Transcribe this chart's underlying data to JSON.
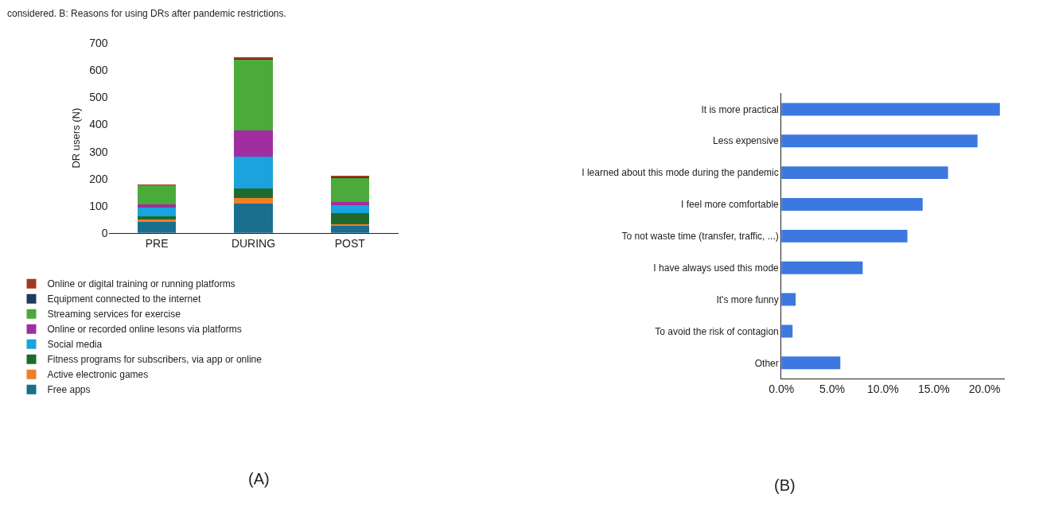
{
  "chart_data": [
    {
      "type": "bar",
      "stacked": true,
      "ylabel": "DR users (N)",
      "categories": [
        "PRE",
        "DURING",
        "POST"
      ],
      "ylim": [
        0,
        700
      ],
      "yticks": [
        0,
        100,
        200,
        300,
        400,
        500,
        600,
        700
      ],
      "grid": false,
      "legend": "bottom",
      "annotations": [
        "considered. B: Reasons for using DRs after pandemic restrictions.",
        "(A)"
      ],
      "series": [
        {
          "name": "Free apps",
          "color": "#1a6e8e",
          "values": [
            40,
            108,
            25
          ]
        },
        {
          "name": "Active electronic games",
          "color": "#f07f2a",
          "values": [
            8,
            20,
            8
          ]
        },
        {
          "name": "Fitness programs for subscribers, via app or online",
          "color": "#1f6b2e",
          "values": [
            14,
            37,
            39
          ]
        },
        {
          "name": "Social media",
          "color": "#1aa3dc",
          "values": [
            30,
            115,
            31
          ]
        },
        {
          "name": "Online or recorded online lesons via platforms",
          "color": "#a02ea0",
          "values": [
            13,
            98,
            12
          ]
        },
        {
          "name": "Streaming services for exercise",
          "color": "#4aaa3a",
          "values": [
            70,
            262,
            88
          ]
        },
        {
          "name": "Equipment connected to the internet",
          "color": "#1c3d5a",
          "values": [
            1,
            2,
            2
          ]
        },
        {
          "name": "Online or digital training or running platforms",
          "color": "#a0391e",
          "values": [
            3,
            6,
            5
          ]
        }
      ]
    },
    {
      "type": "bar",
      "orientation": "horizontal",
      "categories": [
        "It is more practical",
        "Less expensive",
        "I learned about this mode during the pandemic",
        "I feel more comfortable",
        "To not waste time (transfer, traffic, ...)",
        "I have always used this mode",
        "It's more funny",
        "To avoid the risk of contagion",
        "Other"
      ],
      "values": [
        21.5,
        19.3,
        16.4,
        13.9,
        12.4,
        8.0,
        1.4,
        1.1,
        5.8
      ],
      "color": "#3c78e0",
      "xlim": [
        0,
        22
      ],
      "xticks": [
        {
          "value": 0,
          "label": "0.0%"
        },
        {
          "value": 5,
          "label": "5.0%"
        },
        {
          "value": 10,
          "label": "10.0%"
        },
        {
          "value": 15,
          "label": "15.0%"
        },
        {
          "value": 20,
          "label": "20.0%"
        }
      ],
      "grid": false,
      "annotations": [
        "(B)"
      ]
    }
  ]
}
